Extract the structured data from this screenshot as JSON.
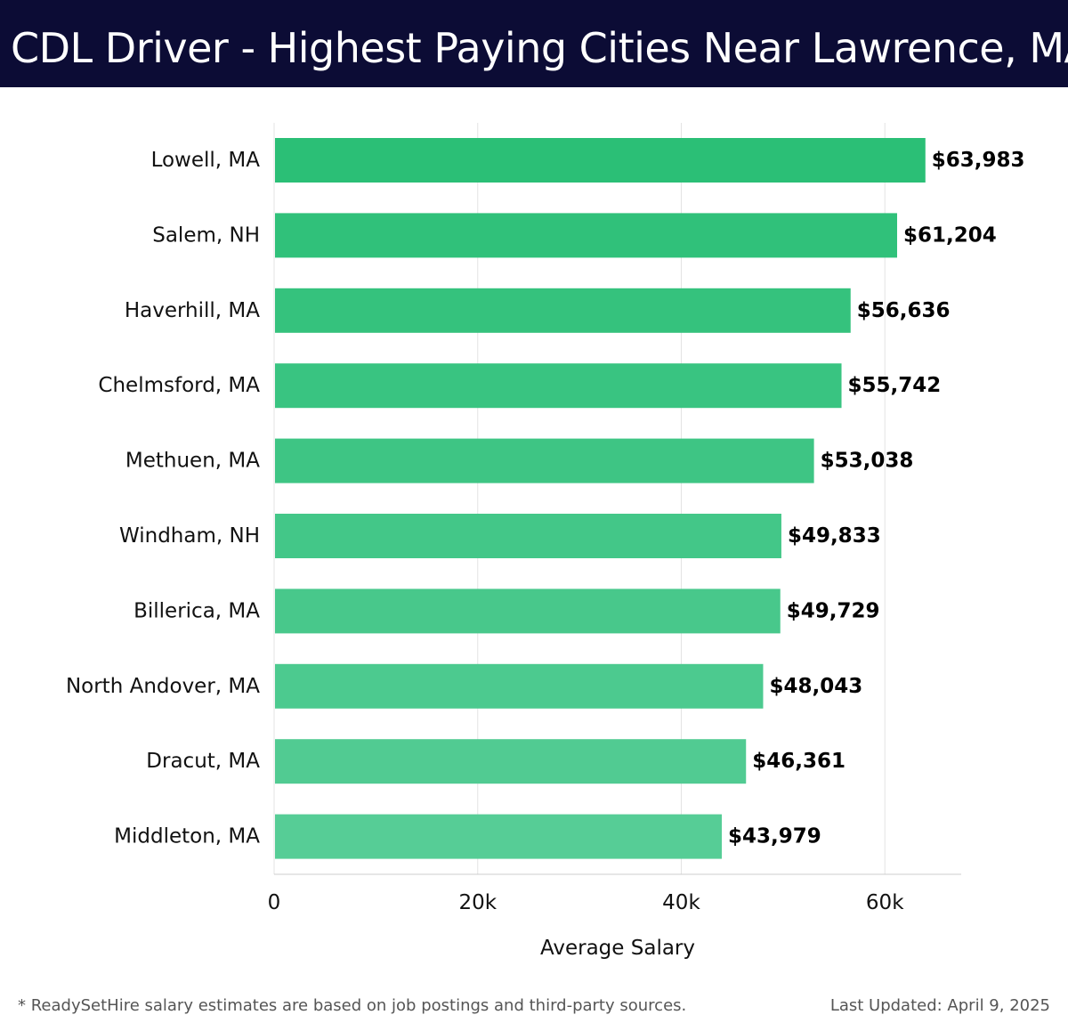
{
  "chart_data": {
    "type": "bar",
    "orientation": "horizontal",
    "title": "CDL Driver - Highest Paying Cities Near Lawrence, MA",
    "categories": [
      "Lowell, MA",
      "Salem, NH",
      "Haverhill, MA",
      "Chelmsford, MA",
      "Methuen, MA",
      "Windham, NH",
      "Billerica, MA",
      "North Andover, MA",
      "Dracut, MA",
      "Middleton, MA"
    ],
    "values": [
      63983,
      61204,
      56636,
      55742,
      53038,
      49833,
      49729,
      48043,
      46361,
      43979
    ],
    "value_labels": [
      "$63,983",
      "$61,204",
      "$56,636",
      "$55,742",
      "$53,038",
      "$49,833",
      "$49,729",
      "$48,043",
      "$46,361",
      "$43,979"
    ],
    "xlabel": "Average Salary",
    "ylabel": "",
    "xlim": [
      0,
      67500
    ],
    "xticks": [
      0,
      20000,
      40000,
      60000
    ],
    "xtick_labels": [
      "0",
      "20k",
      "40k",
      "60k"
    ],
    "grid": "vertical",
    "colors": {
      "bar_top": "#2bbf76",
      "bar_bottom": "#56cd96",
      "grid": "#e3e3e3",
      "axis": "#cccccc"
    }
  },
  "footer": {
    "note": "* ReadySetHire salary estimates are based on job postings and third-party sources.",
    "updated": "Last Updated: April 9, 2025"
  },
  "header": {
    "background": "#0c0c35"
  }
}
